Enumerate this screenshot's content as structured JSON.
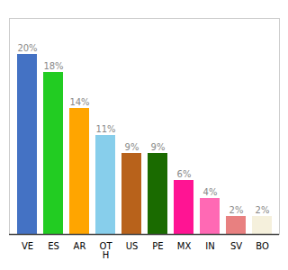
{
  "chart_data": {
    "type": "bar",
    "categories": [
      "VE",
      "ES",
      "AR",
      "OT\nH",
      "US",
      "PE",
      "MX",
      "IN",
      "SV",
      "BO"
    ],
    "values": [
      20,
      18,
      14,
      11,
      9,
      9,
      6,
      4,
      2,
      2
    ],
    "value_labels": [
      "20%",
      "18%",
      "14%",
      "11%",
      "9%",
      "9%",
      "6%",
      "4%",
      "2%",
      "2%"
    ],
    "colors": [
      "#4472C4",
      "#22CC22",
      "#FFA500",
      "#87CEEB",
      "#B8621B",
      "#1A6B00",
      "#FF1493",
      "#FF69B4",
      "#E88080",
      "#F5F0DC"
    ],
    "ylim": [
      0,
      24
    ],
    "data_labels": true,
    "tick_labels": "x"
  }
}
